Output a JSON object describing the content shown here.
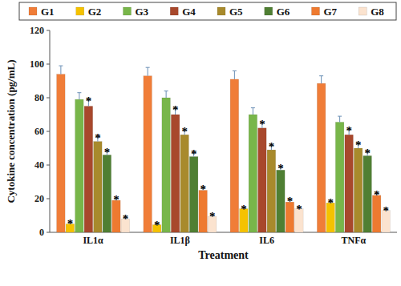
{
  "chart_data": {
    "type": "bar",
    "x_label": "Treatment",
    "y_label": "Cytokine concentration (pg/mL)",
    "categories": [
      "IL1α",
      "IL1β",
      "IL6",
      "TNFα"
    ],
    "series": [
      {
        "name": "G1",
        "color": "#f07d38",
        "values": [
          94,
          93,
          91,
          88.5
        ],
        "errors": [
          5,
          5,
          5,
          4.5
        ]
      },
      {
        "name": "G2",
        "color": "#f5c200",
        "values": [
          5,
          4.5,
          14,
          17.5
        ],
        "errors": [
          0.5,
          0.5,
          0.5,
          0.5
        ],
        "annotations": [
          "*",
          "*",
          "*",
          "*"
        ]
      },
      {
        "name": "G3",
        "color": "#78b64a",
        "values": [
          79,
          80,
          70,
          65.5
        ],
        "errors": [
          4,
          4,
          4,
          3.5
        ]
      },
      {
        "name": "G4",
        "color": "#a8482c",
        "values": [
          75,
          70,
          62,
          58
        ],
        "errors": [
          3.5,
          3.5,
          3,
          3
        ],
        "annotations": [
          "*",
          "*",
          "*",
          "*"
        ]
      },
      {
        "name": "G5",
        "color": "#a88a2c",
        "values": [
          54,
          58,
          49,
          50
        ],
        "errors": [
          2.5,
          2.5,
          2.5,
          2.5
        ],
        "annotations": [
          "*",
          "*",
          "*",
          "*"
        ]
      },
      {
        "name": "G6",
        "color": "#4f7f33",
        "values": [
          46,
          45,
          37,
          45.5
        ],
        "errors": [
          2,
          2,
          1.5,
          2
        ],
        "annotations": [
          "*",
          "*",
          "*",
          "*"
        ]
      },
      {
        "name": "G7",
        "color": "#ee7a30",
        "values": [
          19,
          25,
          18,
          22
        ],
        "errors": [
          1,
          1,
          1,
          1
        ],
        "annotations": [
          "*",
          "*",
          "*",
          "*"
        ]
      },
      {
        "name": "G8",
        "color": "#fbe3cf",
        "values": [
          8,
          9.5,
          14,
          13
        ],
        "errors": [
          0.5,
          0.5,
          0.5,
          0.5
        ],
        "annotations": [
          "*",
          "*",
          "*",
          "*"
        ]
      }
    ],
    "ylim": [
      0,
      120
    ],
    "yticks": [
      0,
      20,
      40,
      60,
      80,
      100,
      120
    ],
    "grid": false,
    "legend": "top"
  }
}
